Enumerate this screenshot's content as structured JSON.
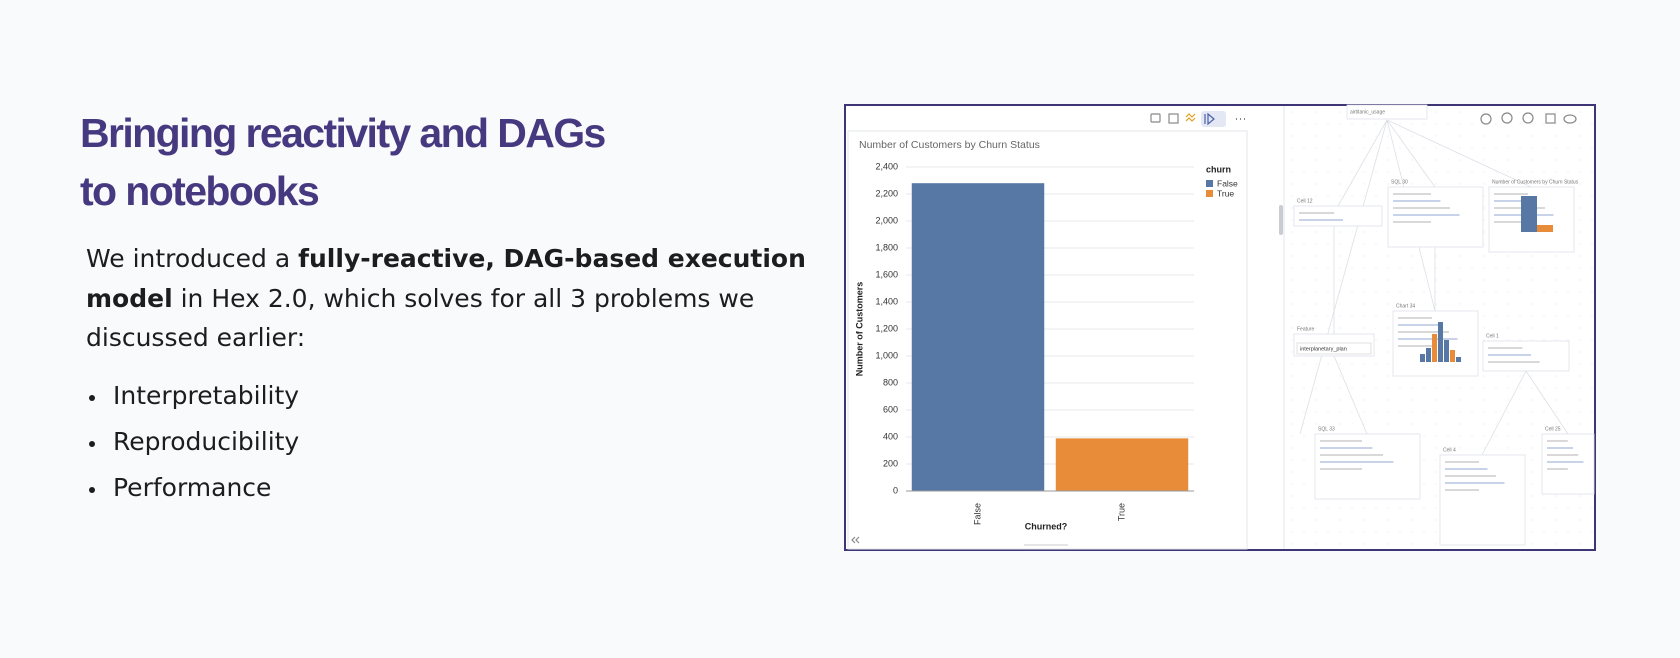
{
  "heading": [
    "Bringing reactivity and DAGs",
    "to notebooks"
  ],
  "body": {
    "lines": [
      [
        {
          "text": "We introduced a ",
          "bold": false
        },
        {
          "text": "fully-reactive, DAG-based execution",
          "bold": true
        }
      ],
      [
        {
          "text": "model",
          "bold": true
        },
        {
          "text": " in Hex 2.0, which solves for all 3 problems we",
          "bold": false
        }
      ],
      [
        {
          "text": "discussed earlier:",
          "bold": false
        }
      ]
    ]
  },
  "bullets": [
    "Interpretability",
    "Reproducibility",
    "Performance"
  ],
  "chart_data": {
    "type": "bar",
    "title": "Number of Customers by Churn Status",
    "x_label": "Churned?",
    "y_label": "Number of Customers",
    "legend_title": "churn",
    "categories": [
      "False",
      "True"
    ],
    "values": [
      2280,
      390
    ],
    "colors": [
      "#5778a5",
      "#e88c3a"
    ],
    "ylim": [
      0,
      2400
    ],
    "yticks": [
      0,
      200,
      400,
      600,
      800,
      {
        "value": 1000,
        "label": "1,000"
      },
      {
        "value": 1200,
        "label": "1,200"
      },
      {
        "value": 1400,
        "label": "1,400"
      },
      {
        "value": 1600,
        "label": "1,600"
      },
      {
        "value": 1800,
        "label": "1,800"
      },
      {
        "value": 2000,
        "label": "2,000"
      },
      {
        "value": 2200,
        "label": "2,200"
      },
      {
        "value": 2400,
        "label": "2,400"
      }
    ],
    "grid": true
  },
  "dag": {
    "nodes": [
      {
        "label": "airtitanic_usage"
      },
      {
        "label": "Cell 12"
      },
      {
        "label": "SQL 30"
      },
      {
        "label": "Number of Customers by Churn Status"
      },
      {
        "label": "Chart 34"
      },
      {
        "label": "Feature"
      },
      {
        "label": "interplanetary_plan"
      },
      {
        "label": "Cell 1"
      },
      {
        "label": "SQL 33"
      },
      {
        "label": "Cell 4"
      },
      {
        "label": "Cell 25"
      }
    ]
  }
}
